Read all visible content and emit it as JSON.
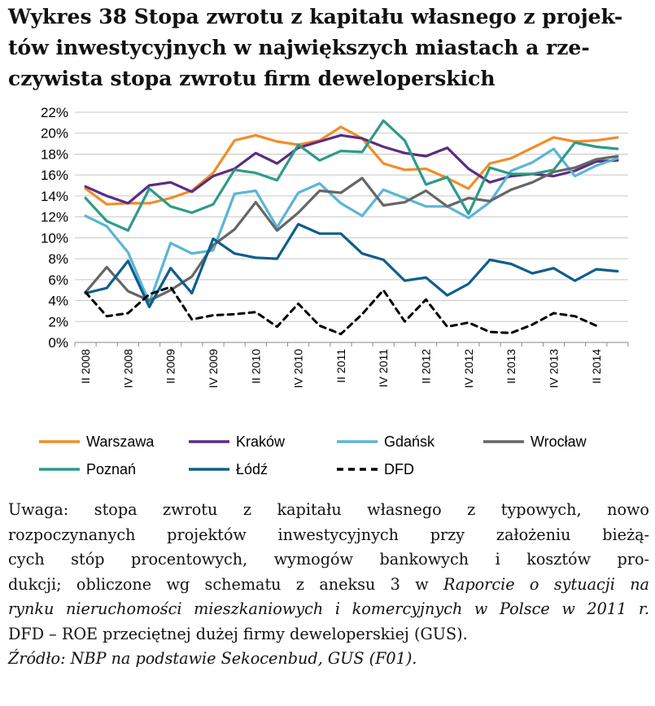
{
  "title_lines": [
    "Wykres 38 Stopa zwrotu z kapitału własnego z projek-",
    "tów inwestycyjnych w największych miastach a rze-",
    "czywista stopa zwrotu firm deweloperskich"
  ],
  "chart_data": {
    "type": "line",
    "title": "Wykres 38 Stopa zwrotu z kapitału własnego z projektów inwestycyjnych w największych miastach a rzeczywista stopa zwrotu firm deweloperskich",
    "ylim": [
      0,
      22
    ],
    "yticks": [
      "0%",
      "2%",
      "4%",
      "6%",
      "8%",
      "10%",
      "12%",
      "14%",
      "16%",
      "18%",
      "20%",
      "22%"
    ],
    "x_categories": [
      "II 2008",
      "III 2008",
      "IV 2008",
      "I 2009",
      "II 2009",
      "III 2009",
      "IV 2009",
      "I 2010",
      "II 2010",
      "III 2010",
      "IV 2010",
      "I 2011",
      "II 2011",
      "III 2011",
      "IV 2011",
      "I 2012",
      "II 2012",
      "III 2012",
      "IV 2012",
      "I 2013",
      "II 2013",
      "III 2013",
      "IV 2013",
      "I 2014",
      "II 2014",
      "III 2014"
    ],
    "xtick_labels": [
      "II 2008",
      "",
      "IV 2008",
      "",
      "II 2009",
      "",
      "IV 2009",
      "",
      "II 2010",
      "",
      "IV 2010",
      "",
      "II 2011",
      "",
      "IV 2011",
      "",
      "II 2012",
      "",
      "IV 2012",
      "",
      "II 2013",
      "",
      "IV 2013",
      "",
      "II 2014",
      ""
    ],
    "legend_position": "bottom",
    "grid": "horizontal",
    "series": [
      {
        "name": "Warszawa",
        "color": "#F28C28",
        "dash": false,
        "values": [
          14.7,
          13.2,
          13.3,
          13.3,
          13.8,
          14.5,
          16.2,
          19.3,
          19.8,
          19.2,
          18.9,
          19.3,
          20.6,
          19.5,
          17.1,
          16.5,
          16.6,
          15.7,
          14.7,
          17.1,
          17.6,
          18.6,
          19.6,
          19.2,
          19.3,
          19.6
        ]
      },
      {
        "name": "Kraków",
        "color": "#5B2D82",
        "dash": false,
        "values": [
          14.9,
          14.0,
          13.3,
          15.0,
          15.3,
          14.4,
          15.9,
          16.6,
          18.1,
          17.1,
          18.6,
          19.2,
          19.8,
          19.5,
          18.7,
          18.1,
          17.8,
          18.6,
          16.6,
          15.3,
          15.9,
          16.1,
          15.9,
          16.4,
          17.3,
          17.4
        ]
      },
      {
        "name": "Gdańsk",
        "color": "#5BB5D5",
        "dash": false,
        "values": [
          12.1,
          11.1,
          8.6,
          3.8,
          9.5,
          8.5,
          8.8,
          14.2,
          14.5,
          11.0,
          14.3,
          15.2,
          13.3,
          12.1,
          14.6,
          13.8,
          13.0,
          13.0,
          11.9,
          13.4,
          16.4,
          17.2,
          18.5,
          15.9,
          16.9,
          17.6
        ]
      },
      {
        "name": "Wrocław",
        "color": "#666666",
        "dash": false,
        "values": [
          4.8,
          7.2,
          4.9,
          4.0,
          5.0,
          6.3,
          9.3,
          10.8,
          13.4,
          10.7,
          12.4,
          14.5,
          14.3,
          15.7,
          13.1,
          13.4,
          14.5,
          13.0,
          13.8,
          13.5,
          14.6,
          15.3,
          16.3,
          16.7,
          17.5,
          17.8
        ]
      },
      {
        "name": "Poznań",
        "color": "#2E9B89",
        "dash": false,
        "values": [
          13.8,
          11.6,
          10.7,
          14.7,
          13.0,
          12.4,
          13.2,
          16.5,
          16.2,
          15.5,
          18.9,
          17.4,
          18.3,
          18.2,
          21.2,
          19.3,
          15.1,
          15.8,
          12.3,
          16.7,
          16.1,
          16.1,
          16.5,
          19.1,
          18.7,
          18.5
        ]
      },
      {
        "name": "Łódź",
        "color": "#0E5E8C",
        "dash": false,
        "values": [
          4.7,
          5.2,
          7.8,
          3.4,
          7.1,
          4.7,
          9.9,
          8.5,
          8.1,
          8.0,
          11.3,
          10.4,
          10.4,
          8.5,
          7.9,
          5.9,
          6.2,
          4.5,
          5.6,
          7.9,
          7.5,
          6.6,
          7.1,
          5.9,
          7.0,
          6.8
        ]
      },
      {
        "name": "DFD",
        "color": "#000000",
        "dash": true,
        "values": [
          4.8,
          2.5,
          2.8,
          4.6,
          5.3,
          2.2,
          2.6,
          2.7,
          2.9,
          1.5,
          3.7,
          1.6,
          0.8,
          2.7,
          5.0,
          2.0,
          4.1,
          1.5,
          1.9,
          1.0,
          0.9,
          1.7,
          2.8,
          2.5,
          1.6,
          null
        ]
      }
    ]
  },
  "legend_order": [
    [
      "Warszawa",
      "Kraków",
      "Gdańsk",
      "Wrocław"
    ],
    [
      "Poznań",
      "Łódź",
      "DFD"
    ]
  ],
  "note": {
    "line1": "Uwaga: stopa zwrotu z kapitału własnego z typowych, nowo",
    "line2": "rozpoczynanych projektów inwestycyjnych przy założeniu bieżą-",
    "line3": "cych stóp procentowych, wymogów bankowych i kosztów pro-",
    "line4_plain": "dukcji; obliczone wg schematu z aneksu 3 w ",
    "line4_italic": "Raporcie o sytuacji na",
    "line5_italic": "rynku nieruchomości mieszkaniowych i komercyjnych w Polsce w 2011 r.",
    "line6": "DFD – ROE przeciętnej dużej firmy deweloperskiej (GUS).",
    "source": "Źródło: NBP na podstawie Sekocenbud, GUS (F01)."
  }
}
